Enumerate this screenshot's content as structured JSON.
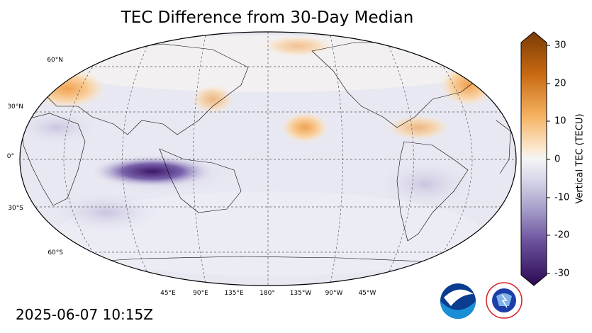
{
  "title": "TEC Difference from 30-Day Median",
  "timestamp": "2025-06-07 10:15Z",
  "colorbar": {
    "label": "Vertical TEC (TECU)",
    "ticks": [
      "30",
      "20",
      "10",
      "0",
      "-10",
      "-20",
      "-30"
    ],
    "min": -30,
    "max": 30
  },
  "lat_labels": [
    "60°N",
    "30°N",
    "0°",
    "30°S",
    "60°S"
  ],
  "lon_labels": [
    "45°E",
    "90°E",
    "135°E",
    "180°",
    "135°W",
    "90°W",
    "45°W"
  ],
  "logos": {
    "noaa_text": "NOAA",
    "nws_text": "NATIONAL WEATHER SERVICE"
  },
  "colors": {
    "positive": "#e08a2a",
    "negative": "#3b1668",
    "neutral": "#f2f2f2"
  }
}
